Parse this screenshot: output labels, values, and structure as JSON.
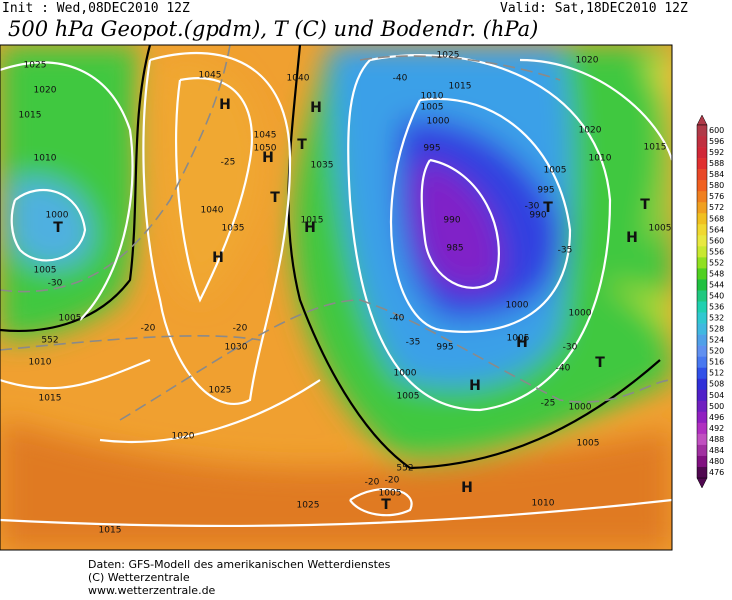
{
  "header": {
    "init": "Init : Wed,08DEC2010 12Z",
    "valid": "Valid: Sat,18DEC2010 12Z",
    "title": "500 hPa Geopot.(gpdm), T (C) und Bodendr. (hPa)"
  },
  "footer": [
    "Daten: GFS-Modell des amerikanischen Wetterdienstes",
    "(C) Wetterzentrale",
    "www.wetterzentrale.de"
  ],
  "colorbar": [
    {
      "label": "600",
      "color": "#b03a48"
    },
    {
      "label": "596",
      "color": "#c03040"
    },
    {
      "label": "592",
      "color": "#d02838"
    },
    {
      "label": "588",
      "color": "#e03030"
    },
    {
      "label": "584",
      "color": "#e84828"
    },
    {
      "label": "580",
      "color": "#f06020"
    },
    {
      "label": "576",
      "color": "#f08020"
    },
    {
      "label": "572",
      "color": "#f0a020"
    },
    {
      "label": "568",
      "color": "#f0c020"
    },
    {
      "label": "564",
      "color": "#f0d830"
    },
    {
      "label": "560",
      "color": "#e8e840"
    },
    {
      "label": "556",
      "color": "#c8e830"
    },
    {
      "label": "552",
      "color": "#90e020"
    },
    {
      "label": "548",
      "color": "#50d020"
    },
    {
      "label": "544",
      "color": "#20c040"
    },
    {
      "label": "540",
      "color": "#20c880"
    },
    {
      "label": "536",
      "color": "#20d0b0"
    },
    {
      "label": "532",
      "color": "#30c8d0"
    },
    {
      "label": "528",
      "color": "#40b8e0"
    },
    {
      "label": "524",
      "color": "#50a0e8"
    },
    {
      "label": "520",
      "color": "#6090f0"
    },
    {
      "label": "516",
      "color": "#4878f0"
    },
    {
      "label": "512",
      "color": "#3050e8"
    },
    {
      "label": "508",
      "color": "#3030d8"
    },
    {
      "label": "504",
      "color": "#5020c8"
    },
    {
      "label": "500",
      "color": "#7020c0"
    },
    {
      "label": "496",
      "color": "#9020c0"
    },
    {
      "label": "492",
      "color": "#b030c0"
    },
    {
      "label": "488",
      "color": "#c050c0"
    },
    {
      "label": "484",
      "color": "#a030a0"
    },
    {
      "label": "480",
      "color": "#801080"
    },
    {
      "label": "476",
      "color": "#500850"
    }
  ],
  "map_labels": [
    "1025",
    "1020",
    "1015",
    "1010",
    "1000",
    "T",
    "1005",
    "-30",
    "1005",
    "552",
    "1010",
    "1015",
    "1045",
    "H",
    "1040",
    "H",
    "1045",
    "1050",
    "H",
    "T",
    "1035",
    "-25",
    "1040",
    "T",
    "1035",
    "H",
    "1015",
    "H",
    "-20",
    "-20",
    "1030",
    "1025",
    "1020",
    "1015",
    "1025",
    "1015",
    "1010",
    "1005",
    "1000",
    "-40",
    "995",
    "990",
    "985",
    "1005",
    "995",
    "T",
    "-30",
    "990",
    "-35",
    "1000",
    "1000",
    "-40",
    "-35",
    "995",
    "1000",
    "1005",
    "H",
    "1005",
    "H",
    "-30",
    "T",
    "-40",
    "-25",
    "1000",
    "1020",
    "1010",
    "1015",
    "T",
    "H",
    "1005",
    "1020",
    "1005",
    "1010",
    "H",
    "552",
    "-20",
    "-20",
    "1005",
    "T",
    "1025"
  ]
}
